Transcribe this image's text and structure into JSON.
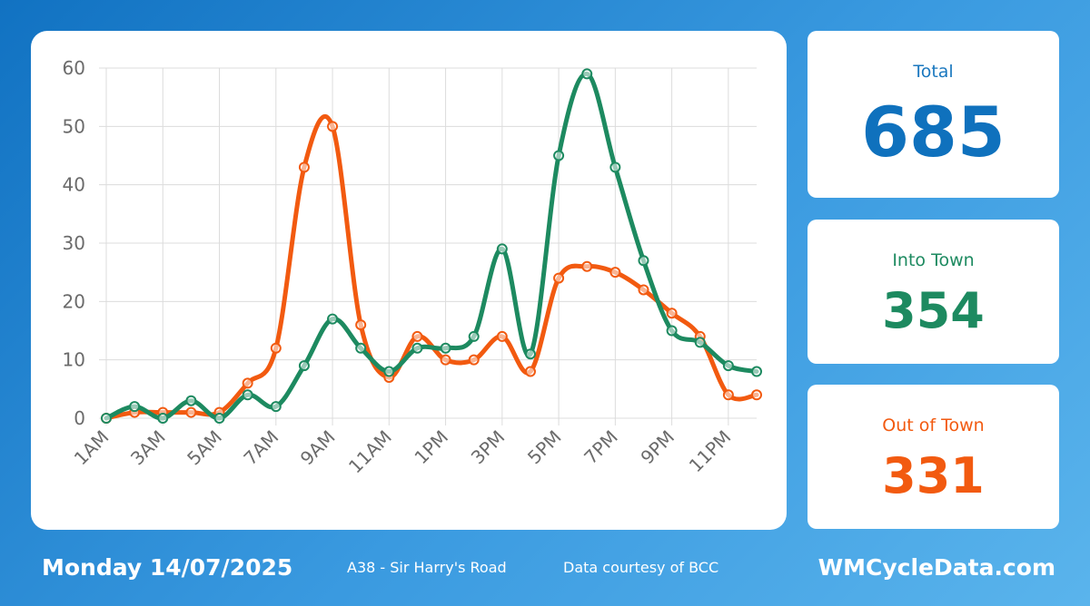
{
  "chart_data": {
    "type": "line",
    "categories": [
      "1AM",
      "2AM",
      "3AM",
      "4AM",
      "5AM",
      "6AM",
      "7AM",
      "8AM",
      "9AM",
      "10AM",
      "11AM",
      "12PM",
      "1PM",
      "2PM",
      "3PM",
      "4PM",
      "5PM",
      "6PM",
      "7PM",
      "8PM",
      "9PM",
      "10PM",
      "11PM",
      "12AM"
    ],
    "tick_labels": [
      "1AM",
      "3AM",
      "5AM",
      "7AM",
      "9AM",
      "11AM",
      "1PM",
      "3PM",
      "5PM",
      "7PM",
      "9PM",
      "11PM"
    ],
    "ylim": [
      0,
      60
    ],
    "y_ticks": [
      0,
      10,
      20,
      30,
      40,
      50,
      60
    ],
    "grid": true,
    "series": [
      {
        "key": "into",
        "color": "#1d8a60",
        "values": [
          0,
          2,
          0,
          3,
          0,
          4,
          2,
          9,
          17,
          12,
          8,
          12,
          12,
          14,
          29,
          11,
          45,
          59,
          43,
          27,
          15,
          13,
          9,
          8
        ]
      },
      {
        "key": "out",
        "color": "#f25a10",
        "values": [
          0,
          1,
          1,
          1,
          1,
          6,
          12,
          43,
          50,
          16,
          7,
          14,
          10,
          10,
          14,
          8,
          24,
          26,
          25,
          22,
          18,
          14,
          4,
          4
        ]
      }
    ]
  },
  "stats": {
    "total": {
      "label": "Total",
      "value": "685"
    },
    "into_town": {
      "label": "Into Town",
      "value": "354"
    },
    "out_of_town": {
      "label": "Out of Town",
      "value": "331"
    }
  },
  "footer": {
    "date": "Monday 14/07/2025",
    "location": "A38 - Sir Harry's Road",
    "credit": "Data courtesy of BCC",
    "site": "WMCycleData.com"
  }
}
